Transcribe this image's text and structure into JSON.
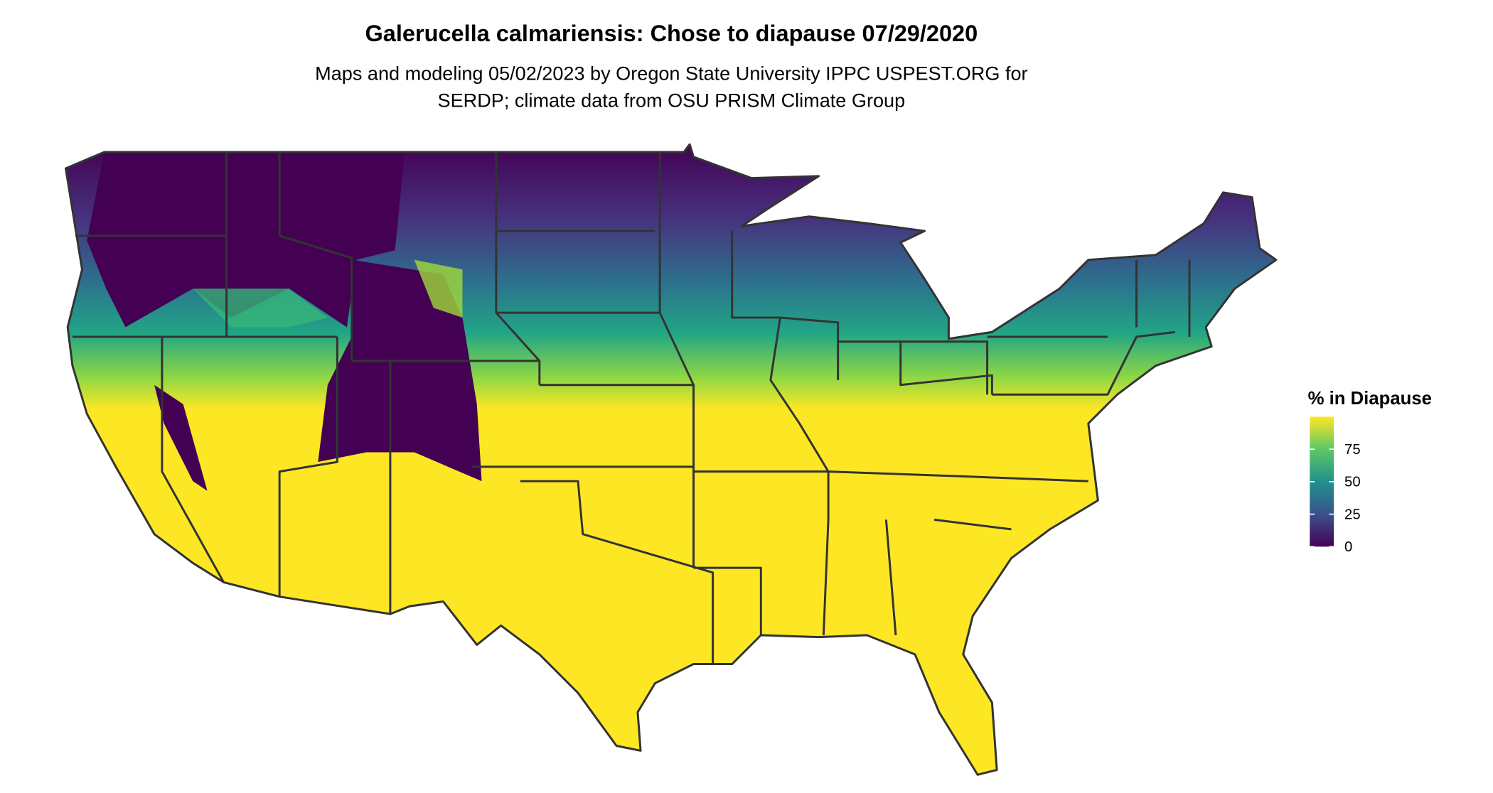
{
  "chart_data": {
    "type": "map",
    "title": "Galerucella calmariensis: Chose to diapause 07/29/2020",
    "subtitle": [
      "Maps and modeling 05/02/2023 by Oregon State University IPPC USPEST.ORG for",
      "SERDP; climate data from OSU PRISM Climate Group"
    ],
    "legend_title": "% in Diapause",
    "colorbar": {
      "lim": [
        0,
        100
      ],
      "ticks": [
        0,
        25,
        50,
        75
      ],
      "colors": [
        "#440154",
        "#3b528b",
        "#21908c",
        "#5dc863",
        "#fde725"
      ]
    }
  }
}
